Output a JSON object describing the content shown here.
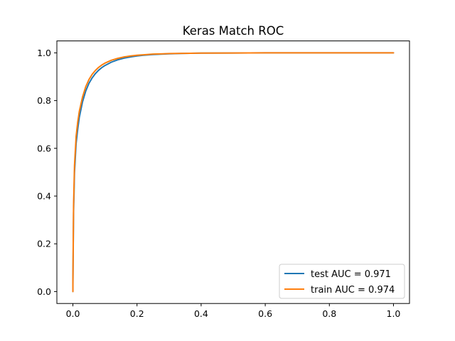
{
  "chart_data": {
    "type": "line",
    "title": "Keras Match ROC",
    "xlabel": "",
    "ylabel": "",
    "xlim": [
      -0.05,
      1.05
    ],
    "ylim": [
      -0.05,
      1.05
    ],
    "xticks": [
      "0.0",
      "0.2",
      "0.4",
      "0.6",
      "0.8",
      "1.0"
    ],
    "yticks": [
      "0.0",
      "0.2",
      "0.4",
      "0.6",
      "0.8",
      "1.0"
    ],
    "grid": false,
    "legend_position": "lower-right",
    "series": [
      {
        "name": "test AUC = 0.971",
        "color": "#1f77b4",
        "x": [
          0.0,
          0.0,
          0.002,
          0.005,
          0.01,
          0.015,
          0.02,
          0.03,
          0.04,
          0.05,
          0.06,
          0.07,
          0.08,
          0.09,
          0.1,
          0.12,
          0.14,
          0.16,
          0.18,
          0.2,
          0.22,
          0.25,
          0.28,
          0.3,
          0.35,
          0.4,
          0.5,
          0.6,
          0.7,
          0.8,
          0.9,
          1.0
        ],
        "y": [
          0.0,
          0.03,
          0.33,
          0.5,
          0.62,
          0.68,
          0.73,
          0.795,
          0.84,
          0.872,
          0.895,
          0.913,
          0.927,
          0.938,
          0.947,
          0.961,
          0.971,
          0.978,
          0.983,
          0.987,
          0.99,
          0.993,
          0.995,
          0.996,
          0.998,
          0.999,
          0.9995,
          1.0,
          1.0,
          1.0,
          1.0,
          1.0
        ]
      },
      {
        "name": "train AUC = 0.974",
        "color": "#ff7f0e",
        "x": [
          0.0,
          0.0,
          0.002,
          0.005,
          0.01,
          0.015,
          0.02,
          0.03,
          0.04,
          0.05,
          0.06,
          0.07,
          0.08,
          0.09,
          0.1,
          0.12,
          0.14,
          0.16,
          0.18,
          0.2,
          0.22,
          0.25,
          0.28,
          0.3,
          0.35,
          0.4,
          0.5,
          0.6,
          0.7,
          0.8,
          0.9,
          1.0
        ],
        "y": [
          0.0,
          0.04,
          0.36,
          0.53,
          0.65,
          0.71,
          0.755,
          0.815,
          0.858,
          0.888,
          0.91,
          0.926,
          0.939,
          0.949,
          0.957,
          0.969,
          0.977,
          0.983,
          0.987,
          0.99,
          0.992,
          0.995,
          0.996,
          0.997,
          0.998,
          0.999,
          0.9995,
          1.0,
          1.0,
          1.0,
          1.0,
          1.0
        ]
      }
    ]
  }
}
